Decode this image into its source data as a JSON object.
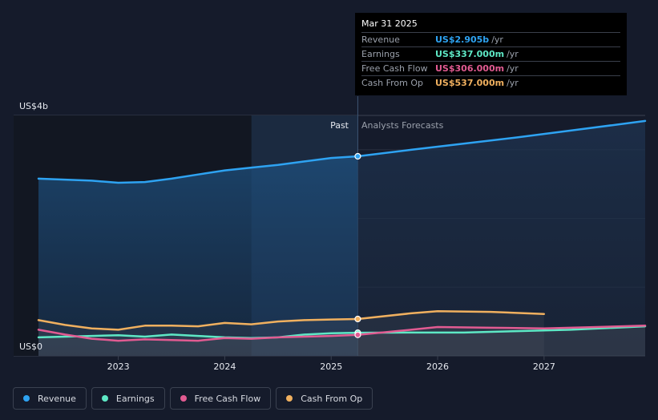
{
  "tooltip": {
    "date": "Mar 31 2025",
    "rows": [
      {
        "label": "Revenue",
        "value": "US$2.905b",
        "unit": "/yr",
        "color": "#2ea3f2"
      },
      {
        "label": "Earnings",
        "value": "US$337.000m",
        "unit": "/yr",
        "color": "#5ee8c5"
      },
      {
        "label": "Free Cash Flow",
        "value": "US$306.000m",
        "unit": "/yr",
        "color": "#e25b92"
      },
      {
        "label": "Cash From Op",
        "value": "US$537.000m",
        "unit": "/yr",
        "color": "#f0b05f"
      }
    ]
  },
  "legend": [
    {
      "label": "Revenue",
      "color": "#2ea3f2"
    },
    {
      "label": "Earnings",
      "color": "#5ee8c5"
    },
    {
      "label": "Free Cash Flow",
      "color": "#e25b92"
    },
    {
      "label": "Cash From Op",
      "color": "#f0b05f"
    }
  ],
  "chart_data": {
    "type": "line",
    "y_top_label": "US$4b",
    "y_bottom_label": "US$0",
    "ylim": [
      0,
      3.5
    ],
    "xlim": [
      2022.25,
      2027.95
    ],
    "x_ticks": [
      2023,
      2024,
      2025,
      2026,
      2027
    ],
    "past_label": "Past",
    "forecast_label": "Analysts Forecasts",
    "divider_x": 2025.25,
    "highlight_start_x": 2024.25,
    "gridlines": [
      3.0,
      2.0,
      1.0
    ],
    "series": [
      {
        "name": "Revenue",
        "color": "#2ea3f2",
        "points": [
          [
            2022.25,
            2.58
          ],
          [
            2022.75,
            2.55
          ],
          [
            2023.0,
            2.52
          ],
          [
            2023.25,
            2.53
          ],
          [
            2023.5,
            2.58
          ],
          [
            2023.75,
            2.64
          ],
          [
            2024.0,
            2.7
          ],
          [
            2024.25,
            2.74
          ],
          [
            2024.5,
            2.78
          ],
          [
            2024.75,
            2.83
          ],
          [
            2025.0,
            2.88
          ],
          [
            2025.25,
            2.905
          ],
          [
            2025.75,
            3.0
          ],
          [
            2026.25,
            3.09
          ],
          [
            2026.75,
            3.18
          ],
          [
            2027.25,
            3.28
          ],
          [
            2027.95,
            3.42
          ]
        ]
      },
      {
        "name": "Earnings",
        "color": "#5ee8c5",
        "points": [
          [
            2022.25,
            0.27
          ],
          [
            2022.75,
            0.29
          ],
          [
            2023.0,
            0.3
          ],
          [
            2023.25,
            0.28
          ],
          [
            2023.5,
            0.31
          ],
          [
            2023.75,
            0.29
          ],
          [
            2024.0,
            0.27
          ],
          [
            2024.25,
            0.26
          ],
          [
            2024.5,
            0.27
          ],
          [
            2024.75,
            0.31
          ],
          [
            2025.0,
            0.33
          ],
          [
            2025.25,
            0.337
          ],
          [
            2025.75,
            0.34
          ],
          [
            2026.25,
            0.34
          ],
          [
            2026.75,
            0.36
          ],
          [
            2027.25,
            0.38
          ],
          [
            2027.95,
            0.43
          ]
        ]
      },
      {
        "name": "Free Cash Flow",
        "color": "#e25b92",
        "points": [
          [
            2022.25,
            0.38
          ],
          [
            2022.5,
            0.31
          ],
          [
            2022.75,
            0.25
          ],
          [
            2023.0,
            0.22
          ],
          [
            2023.25,
            0.24
          ],
          [
            2023.5,
            0.23
          ],
          [
            2023.75,
            0.22
          ],
          [
            2024.0,
            0.26
          ],
          [
            2024.25,
            0.25
          ],
          [
            2024.5,
            0.27
          ],
          [
            2024.75,
            0.28
          ],
          [
            2025.0,
            0.29
          ],
          [
            2025.25,
            0.306
          ],
          [
            2025.75,
            0.38
          ],
          [
            2026.0,
            0.42
          ],
          [
            2026.5,
            0.41
          ],
          [
            2027.0,
            0.4
          ],
          [
            2027.5,
            0.42
          ],
          [
            2027.95,
            0.44
          ]
        ]
      },
      {
        "name": "Cash From Op",
        "color": "#f0b05f",
        "points": [
          [
            2022.25,
            0.52
          ],
          [
            2022.5,
            0.45
          ],
          [
            2022.75,
            0.4
          ],
          [
            2023.0,
            0.38
          ],
          [
            2023.25,
            0.44
          ],
          [
            2023.5,
            0.44
          ],
          [
            2023.75,
            0.43
          ],
          [
            2024.0,
            0.48
          ],
          [
            2024.25,
            0.46
          ],
          [
            2024.5,
            0.5
          ],
          [
            2024.75,
            0.52
          ],
          [
            2025.0,
            0.53
          ],
          [
            2025.25,
            0.537
          ],
          [
            2025.75,
            0.62
          ],
          [
            2026.0,
            0.65
          ],
          [
            2026.5,
            0.64
          ],
          [
            2027.0,
            0.61
          ]
        ]
      }
    ]
  }
}
